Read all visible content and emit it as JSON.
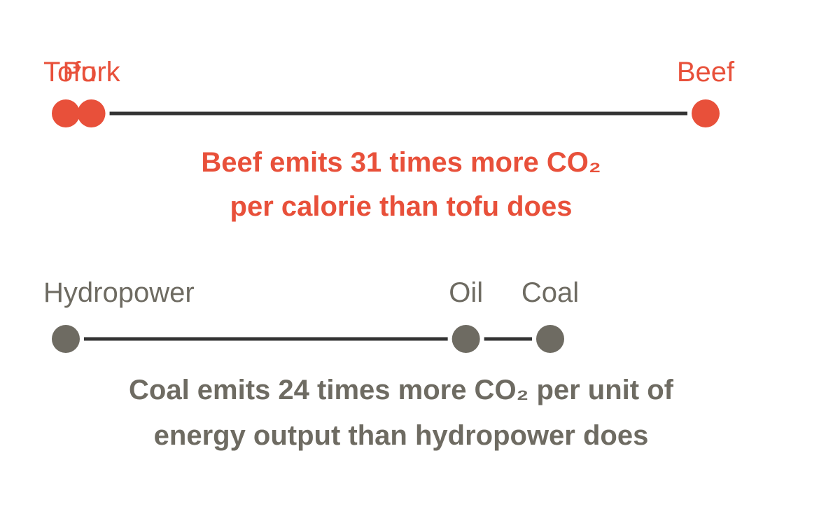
{
  "chart_data": [
    {
      "type": "scatter",
      "color": "#e8503a",
      "points": [
        {
          "label": "Tofu",
          "value": 1
        },
        {
          "label": "Pork",
          "value": 2.2
        },
        {
          "label": "Beef",
          "value": 31
        }
      ],
      "caption": [
        "Beef emits 31 times more CO₂",
        "per calorie than tofu does"
      ]
    },
    {
      "type": "scatter",
      "color": "#6e6b62",
      "points": [
        {
          "label": "Hydropower",
          "value": 1
        },
        {
          "label": "Oil",
          "value": 20
        },
        {
          "label": "Coal",
          "value": 24
        }
      ],
      "caption": [
        "Coal emits 24 times more CO₂ per unit of",
        "energy output than hydropower does"
      ]
    }
  ],
  "colors": {
    "line": "#333333",
    "background": "#ffffff"
  }
}
